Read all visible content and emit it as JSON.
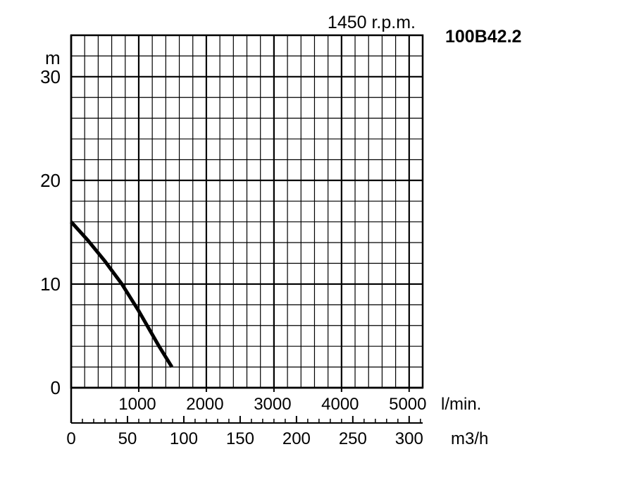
{
  "chart_data": {
    "type": "line",
    "model": "100B42.2",
    "speed_label": "1450 r.p.m.",
    "ylabel": "m",
    "ylim": [
      0,
      34
    ],
    "y_ticks": [
      0,
      10,
      20,
      30
    ],
    "y_tick_labels": [
      "0",
      "10",
      "20",
      "30"
    ],
    "x_primary": {
      "unit": "l/min.",
      "lim": [
        0,
        5200
      ],
      "ticks": [
        1000,
        2000,
        3000,
        4000,
        5000
      ],
      "tick_labels": [
        "1000",
        "2000",
        "3000",
        "4000",
        "5000"
      ]
    },
    "x_secondary": {
      "unit": "m3/h",
      "lim": [
        0,
        312
      ],
      "ticks": [
        0,
        50,
        100,
        150,
        200,
        250,
        300
      ],
      "tick_labels": [
        "0",
        "50",
        "100",
        "150",
        "200",
        "250",
        "300"
      ]
    },
    "grid": true,
    "series": [
      {
        "x": [
          0,
          250,
          500,
          750,
          1000,
          1150,
          1300,
          1490
        ],
        "y": [
          16,
          14.2,
          12.2,
          10,
          7.4,
          5.7,
          4.0,
          2.0
        ]
      }
    ],
    "colors": {
      "curve": "#000000",
      "grid": "#000000",
      "background": "#ffffff"
    }
  }
}
